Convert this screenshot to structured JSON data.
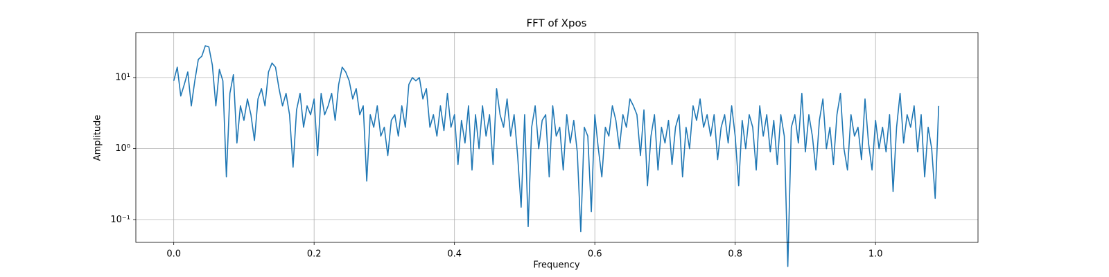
{
  "chart_data": {
    "type": "line",
    "title": "FFT of Xpos",
    "x_label": "Frequency",
    "y_label": "Amplitude",
    "y_scale": "log",
    "grid": true,
    "xlim": [
      -0.054,
      1.146
    ],
    "ylim": [
      0.048,
      43
    ],
    "xticks": [
      {
        "value": 0,
        "label": "0.0"
      },
      0.2,
      0.4,
      0.6,
      0.8,
      {
        "value": 1,
        "label": "1.0"
      }
    ],
    "yticks": [
      {
        "value": 0.1,
        "label": "10⁻¹"
      },
      {
        "value": 1,
        "label": "10⁰"
      },
      {
        "value": 10,
        "label": "10¹"
      }
    ],
    "x": [
      0,
      0.005,
      0.01,
      0.015,
      0.02,
      0.025,
      0.03,
      0.035,
      0.04,
      0.045,
      0.05,
      0.055,
      0.06,
      0.065,
      0.07,
      0.075,
      0.08,
      0.085,
      0.09,
      0.095,
      0.1,
      0.105,
      0.11,
      0.115,
      0.12,
      0.125,
      0.13,
      0.135,
      0.14,
      0.145,
      0.15,
      0.155,
      0.16,
      0.165,
      0.17,
      0.175,
      0.18,
      0.185,
      0.19,
      0.195,
      0.2,
      0.205,
      0.21,
      0.215,
      0.22,
      0.225,
      0.23,
      0.235,
      0.24,
      0.245,
      0.25,
      0.255,
      0.26,
      0.265,
      0.27,
      0.275,
      0.28,
      0.285,
      0.29,
      0.295,
      0.3,
      0.305,
      0.31,
      0.315,
      0.32,
      0.325,
      0.33,
      0.335,
      0.34,
      0.345,
      0.35,
      0.355,
      0.36,
      0.365,
      0.37,
      0.375,
      0.38,
      0.385,
      0.39,
      0.395,
      0.4,
      0.405,
      0.41,
      0.415,
      0.42,
      0.425,
      0.43,
      0.435,
      0.44,
      0.445,
      0.45,
      0.455,
      0.46,
      0.465,
      0.47,
      0.475,
      0.48,
      0.485,
      0.49,
      0.495,
      0.5,
      0.505,
      0.51,
      0.515,
      0.52,
      0.525,
      0.53,
      0.535,
      0.54,
      0.545,
      0.55,
      0.555,
      0.56,
      0.565,
      0.57,
      0.575,
      0.58,
      0.585,
      0.59,
      0.595,
      0.6,
      0.605,
      0.61,
      0.615,
      0.62,
      0.625,
      0.63,
      0.635,
      0.64,
      0.645,
      0.65,
      0.655,
      0.66,
      0.665,
      0.67,
      0.675,
      0.68,
      0.685,
      0.69,
      0.695,
      0.7,
      0.705,
      0.71,
      0.715,
      0.72,
      0.725,
      0.73,
      0.735,
      0.74,
      0.745,
      0.75,
      0.755,
      0.76,
      0.765,
      0.77,
      0.775,
      0.78,
      0.785,
      0.79,
      0.795,
      0.8,
      0.805,
      0.81,
      0.815,
      0.82,
      0.825,
      0.83,
      0.835,
      0.84,
      0.845,
      0.85,
      0.855,
      0.86,
      0.865,
      0.87,
      0.875,
      0.88,
      0.885,
      0.89,
      0.895,
      0.9,
      0.905,
      0.91,
      0.915,
      0.92,
      0.925,
      0.93,
      0.935,
      0.94,
      0.945,
      0.95,
      0.955,
      0.96,
      0.965,
      0.97,
      0.975,
      0.98,
      0.985,
      0.99,
      0.995,
      1,
      1.005,
      1.01,
      1.015,
      1.02,
      1.025,
      1.03,
      1.035,
      1.04,
      1.045,
      1.05,
      1.055,
      1.06,
      1.065,
      1.07,
      1.075,
      1.08,
      1.085,
      1.09
    ],
    "series": [
      {
        "color": "#1f77b4",
        "values": [
          9,
          14,
          5.5,
          8,
          12,
          4,
          9,
          18,
          20,
          28,
          27,
          15,
          4,
          13,
          9,
          0.4,
          6,
          11,
          1.2,
          4,
          2.5,
          5,
          3,
          1.3,
          5,
          7,
          4,
          12,
          16,
          14,
          7,
          4,
          6,
          3,
          0.55,
          3.5,
          6,
          2,
          4,
          3,
          5,
          0.8,
          6,
          3,
          4,
          6,
          2.5,
          8,
          14,
          12,
          9,
          5,
          7,
          3,
          4,
          0.35,
          3,
          2,
          4,
          1.5,
          2,
          0.8,
          2.5,
          3,
          1.5,
          4,
          2,
          8,
          10,
          9,
          10,
          5,
          7,
          2,
          3,
          1.5,
          4,
          1.8,
          6,
          2,
          3,
          0.6,
          2.5,
          1.2,
          4,
          0.5,
          3,
          1,
          4,
          1.5,
          3,
          0.6,
          7,
          3,
          2,
          5,
          1.5,
          3,
          0.8,
          0.15,
          3,
          0.08,
          2,
          4,
          1,
          2.5,
          3,
          0.4,
          4,
          1.5,
          2,
          0.5,
          3,
          1.2,
          2.5,
          0.9,
          0.068,
          2,
          1.5,
          0.13,
          3,
          1,
          0.4,
          2,
          1.5,
          4,
          2.5,
          1,
          3,
          2,
          5,
          4,
          3,
          0.8,
          3.5,
          0.3,
          1.5,
          3,
          0.5,
          2,
          1.2,
          2.5,
          0.6,
          2,
          3,
          0.4,
          2,
          1,
          4,
          2.5,
          5,
          2,
          3,
          1.5,
          3,
          0.7,
          2,
          3,
          1.2,
          4,
          1.5,
          0.3,
          2.5,
          1,
          3,
          2,
          0.5,
          4,
          1.5,
          3,
          0.9,
          2.5,
          0.6,
          3,
          1.5,
          0.022,
          2,
          3,
          1.2,
          6,
          0.9,
          3,
          1.5,
          0.5,
          2.5,
          5,
          1,
          2,
          0.6,
          3,
          6,
          1,
          0.5,
          3,
          1.5,
          2,
          0.7,
          5,
          1.2,
          0.5,
          2.5,
          1,
          2,
          0.9,
          3,
          0.25,
          2,
          6,
          1.2,
          3,
          2,
          4,
          0.9,
          3,
          0.4,
          2,
          1,
          0.2,
          4
        ]
      }
    ]
  }
}
